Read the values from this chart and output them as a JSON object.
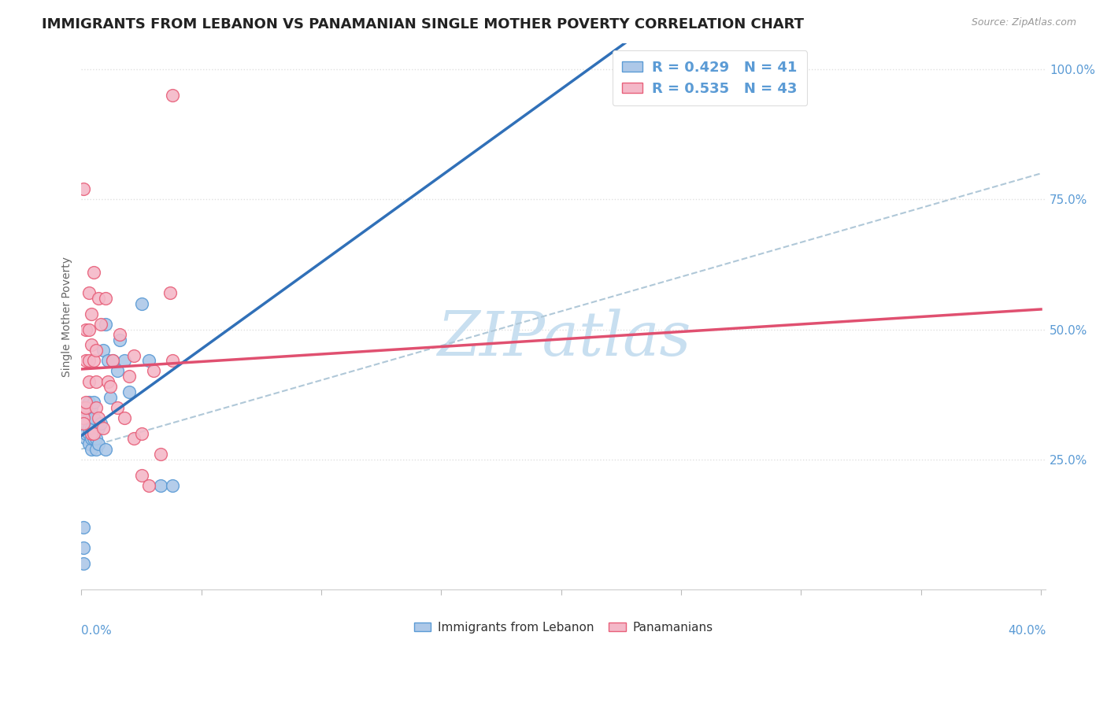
{
  "title": "IMMIGRANTS FROM LEBANON VS PANAMANIAN SINGLE MOTHER POVERTY CORRELATION CHART",
  "source": "Source: ZipAtlas.com",
  "legend_label_blue": "Immigrants from Lebanon",
  "legend_label_pink": "Panamanians",
  "ylabel": "Single Mother Poverty",
  "R_blue": 0.429,
  "N_blue": 41,
  "R_pink": 0.535,
  "N_pink": 43,
  "blue_fill": "#adc8e8",
  "blue_edge": "#5b9bd5",
  "pink_fill": "#f4b8c8",
  "pink_edge": "#e8607a",
  "blue_line": "#3070b8",
  "pink_line": "#e05070",
  "dash_line": "#b0c8d8",
  "watermark_color": "#c8dff0",
  "title_color": "#222222",
  "axis_tick_color": "#5b9bd5",
  "ylabel_color": "#666666",
  "grid_color": "#e0e0e0",
  "blue_scatter_x": [
    0.001,
    0.001,
    0.001,
    0.002,
    0.002,
    0.002,
    0.002,
    0.003,
    0.003,
    0.003,
    0.003,
    0.003,
    0.003,
    0.004,
    0.004,
    0.004,
    0.004,
    0.004,
    0.005,
    0.005,
    0.005,
    0.005,
    0.006,
    0.006,
    0.007,
    0.007,
    0.008,
    0.009,
    0.01,
    0.01,
    0.011,
    0.012,
    0.013,
    0.015,
    0.016,
    0.018,
    0.02,
    0.025,
    0.028,
    0.033,
    0.038
  ],
  "blue_scatter_y": [
    0.05,
    0.08,
    0.12,
    0.29,
    0.3,
    0.32,
    0.33,
    0.28,
    0.3,
    0.31,
    0.33,
    0.35,
    0.36,
    0.27,
    0.29,
    0.31,
    0.33,
    0.35,
    0.29,
    0.31,
    0.33,
    0.36,
    0.27,
    0.29,
    0.28,
    0.31,
    0.32,
    0.46,
    0.27,
    0.51,
    0.44,
    0.37,
    0.44,
    0.42,
    0.48,
    0.44,
    0.38,
    0.55,
    0.44,
    0.2,
    0.2
  ],
  "pink_scatter_x": [
    0.001,
    0.001,
    0.001,
    0.001,
    0.002,
    0.002,
    0.002,
    0.002,
    0.003,
    0.003,
    0.003,
    0.003,
    0.004,
    0.004,
    0.004,
    0.005,
    0.005,
    0.005,
    0.006,
    0.006,
    0.006,
    0.007,
    0.007,
    0.008,
    0.009,
    0.01,
    0.011,
    0.012,
    0.013,
    0.015,
    0.016,
    0.018,
    0.02,
    0.022,
    0.025,
    0.03,
    0.033,
    0.037,
    0.038,
    0.025,
    0.028,
    0.022,
    0.038
  ],
  "pink_scatter_y": [
    0.77,
    0.35,
    0.33,
    0.32,
    0.35,
    0.5,
    0.44,
    0.36,
    0.57,
    0.5,
    0.44,
    0.4,
    0.3,
    0.47,
    0.53,
    0.3,
    0.44,
    0.61,
    0.46,
    0.4,
    0.35,
    0.33,
    0.56,
    0.51,
    0.31,
    0.56,
    0.4,
    0.39,
    0.44,
    0.35,
    0.49,
    0.33,
    0.41,
    0.29,
    0.22,
    0.42,
    0.26,
    0.57,
    0.95,
    0.3,
    0.2,
    0.45,
    0.44
  ],
  "xlim": [
    0.0,
    0.4
  ],
  "ylim": [
    0.0,
    1.05
  ],
  "yticks": [
    0.25,
    0.5,
    0.75,
    1.0
  ],
  "ytick_labels": [
    "25.0%",
    "50.0%",
    "75.0%",
    "100.0%"
  ],
  "xtick_positions": [
    0.0,
    0.05,
    0.1,
    0.15,
    0.2,
    0.25,
    0.3,
    0.35,
    0.4
  ],
  "title_fontsize": 13,
  "axis_label_fontsize": 10,
  "tick_fontsize": 11,
  "marker_size": 130
}
